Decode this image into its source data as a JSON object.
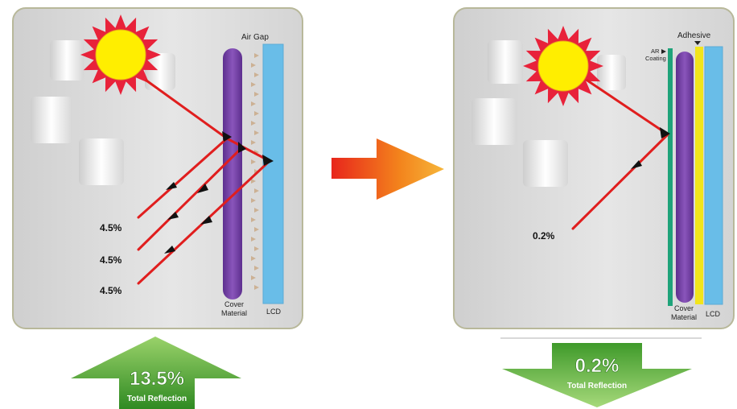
{
  "left_panel": {
    "air_gap_label": "Air Gap",
    "cover_label_line1": "Cover",
    "cover_label_line2": "Material",
    "lcd_label": "LCD",
    "reflections": [
      "4.5%",
      "4.5%",
      "4.5%"
    ],
    "total_value": "13.5%",
    "total_label": "Total Reflection",
    "total_arrow_direction": "up"
  },
  "right_panel": {
    "adhesive_label": "Adhesive",
    "ar_label_line1": "AR",
    "ar_label_line2": "Coating",
    "cover_label_line1": "Cover",
    "cover_label_line2": "Material",
    "lcd_label": "LCD",
    "reflection": "0.2%",
    "total_value": "0.2%",
    "total_label": "Total Reflection",
    "total_arrow_direction": "down"
  },
  "icons": {
    "sun": "sun-icon",
    "transition_arrow": "arrow-right-icon"
  },
  "colors": {
    "panel_bg": "#dedede",
    "panel_border": "#b8b89a",
    "cover_material": "#7a46a8",
    "lcd": "#69bde8",
    "adhesive": "#f2e51b",
    "ar_coating": "#1fa37a",
    "ray": "#e01e1e",
    "sun_core": "#ffee00",
    "sun_rays": "#e8223a",
    "green_arrow": "#3f9a2a",
    "orange_arrow": "#f07a1a"
  }
}
